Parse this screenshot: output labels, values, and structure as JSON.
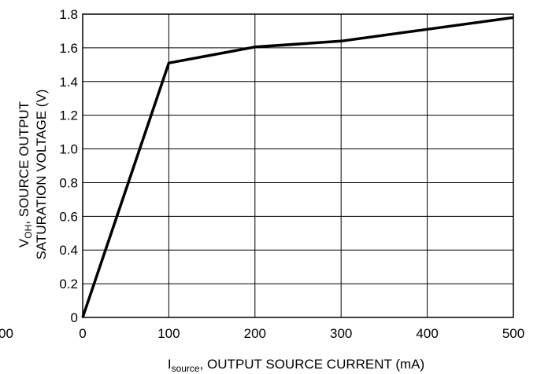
{
  "chart_data": {
    "type": "line",
    "xlabel_main": "I",
    "xlabel_sub": "source",
    "xlabel_rest": ", OUTPUT SOURCE CURRENT (mA)",
    "ylabel_line1_main": "V",
    "ylabel_line1_sub": "OH",
    "ylabel_line1_rest": ", SOURCE OUTPUT",
    "ylabel_line2": "SATURATION VOLTAGE (V)",
    "xlim": [
      0,
      500
    ],
    "ylim": [
      0,
      1.8
    ],
    "x_ticks": [
      0,
      100,
      200,
      300,
      400,
      500
    ],
    "x_tick_labels": [
      "0",
      "100",
      "200",
      "300",
      "400",
      "500"
    ],
    "y_ticks": [
      0,
      0.2,
      0.4,
      0.6,
      0.8,
      1.0,
      1.2,
      1.4,
      1.6,
      1.8
    ],
    "y_tick_labels": [
      "0",
      "0.2",
      "0.4",
      "0.6",
      "0.8",
      "1.0",
      "1.2",
      "1.4",
      "1.6",
      "1.8"
    ],
    "clipped_left_label": "00",
    "grid": true,
    "series": [
      {
        "x": [
          0,
          100,
          200,
          300,
          400,
          500
        ],
        "values": [
          0,
          1.51,
          1.605,
          1.64,
          1.71,
          1.78
        ]
      }
    ]
  }
}
